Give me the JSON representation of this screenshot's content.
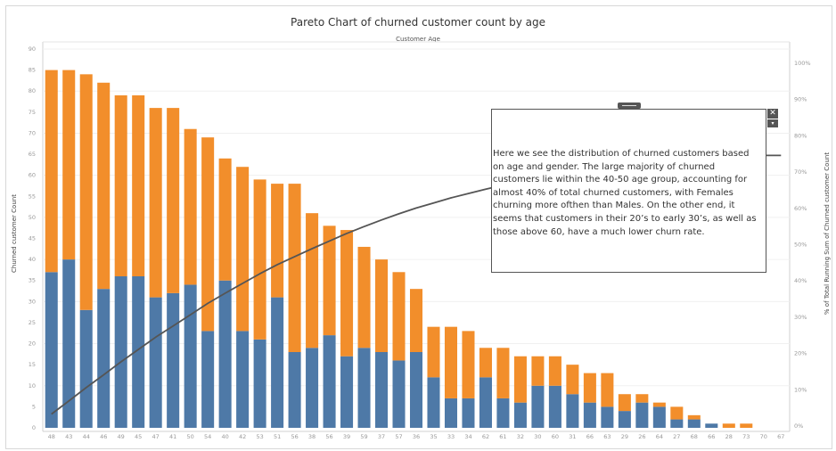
{
  "chart_data": {
    "type": "bar",
    "title": "Pareto Chart of churned customer count by age",
    "top_axis_label": "Customer Age",
    "ylabel_left": "Churned customer Count",
    "ylabel_right": "% of Total Running Sum of Churned customer Count",
    "ylim": [
      0,
      90
    ],
    "y_ticks": [
      0,
      5,
      10,
      15,
      20,
      25,
      30,
      35,
      40,
      45,
      50,
      55,
      60,
      65,
      70,
      75,
      80,
      85,
      90
    ],
    "y2_ticks": [
      "0%",
      "10%",
      "20%",
      "30%",
      "40%",
      "50%",
      "60%",
      "70%",
      "80%",
      "90%",
      "100%"
    ],
    "stacked": true,
    "categories": [
      "48",
      "43",
      "44",
      "46",
      "49",
      "45",
      "47",
      "41",
      "50",
      "54",
      "40",
      "42",
      "53",
      "51",
      "56",
      "38",
      "56",
      "39",
      "59",
      "37",
      "57",
      "36",
      "35",
      "33",
      "34",
      "62",
      "61",
      "32",
      "30",
      "60",
      "31",
      "66",
      "63",
      "29",
      "26",
      "64",
      "27",
      "68",
      "66",
      "28",
      "73",
      "70",
      "67"
    ],
    "series": [
      {
        "color": "#4e79a7",
        "values": [
          37,
          40,
          28,
          33,
          36,
          36,
          31,
          32,
          34,
          23,
          35,
          23,
          21,
          31,
          18,
          19,
          22,
          17,
          19,
          18,
          16,
          18,
          12,
          7,
          7,
          12,
          7,
          6,
          10,
          10,
          8,
          6,
          5,
          4,
          6,
          5,
          2,
          2,
          1,
          0,
          0,
          0,
          0
        ]
      },
      {
        "color": "#f28e2b",
        "values": [
          48,
          45,
          56,
          49,
          43,
          43,
          45,
          44,
          37,
          46,
          29,
          39,
          38,
          27,
          40,
          32,
          26,
          30,
          24,
          22,
          21,
          15,
          12,
          17,
          16,
          7,
          12,
          11,
          7,
          7,
          7,
          7,
          8,
          4,
          2,
          1,
          3,
          1,
          0,
          1,
          1,
          0,
          0
        ]
      }
    ],
    "pareto_line": {
      "color": "#555555",
      "values_pct": [
        3.3,
        6.9,
        10.6,
        14.1,
        17.7,
        21.1,
        24.5,
        27.6,
        30.7,
        33.8,
        36.6,
        39.3,
        42.0,
        44.5,
        46.7,
        48.9,
        51.0,
        53.1,
        55.0,
        56.8,
        58.5,
        60.1,
        61.5,
        62.9,
        64.1,
        65.3,
        66.4,
        67.4,
        68.4,
        69.4,
        70.3,
        71.0,
        71.6,
        72.3,
        73.0,
        73.5,
        74.0,
        74.2,
        74.4,
        74.5,
        74.6,
        74.6,
        74.6
      ]
    },
    "grid": true,
    "annotation": "Here we see the distribution of churned customers based on age and gender.  The large majority of churned customers lie within the 40-50 age group, accounting for almost 40% of total churned customers, with Females churning more ofthen than Males. On the other end, it seems that customers in their 20’s to early 30’s, as well as those above 60, have a much lower churn rate."
  },
  "annotation_controls": {
    "close_icon": "✕",
    "menu_icon": "▾"
  }
}
